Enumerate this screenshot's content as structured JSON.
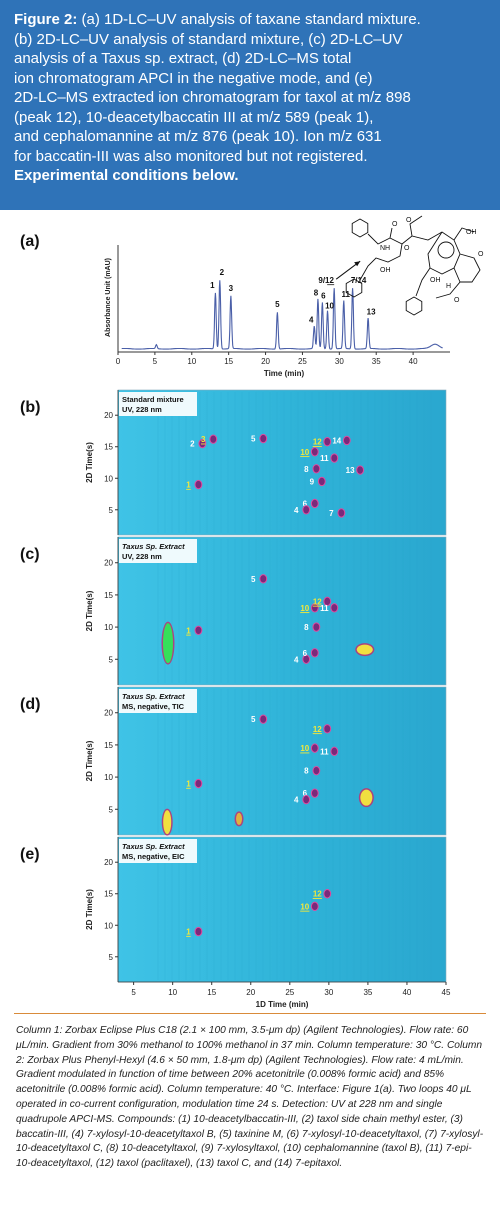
{
  "caption": {
    "figure_label": "Figure 2:",
    "lines": [
      " (a) 1D-LC–UV analysis of taxane standard mixture.",
      "(b) 2D-LC–UV analysis of standard mixture, (c) 2D-LC–UV",
      "analysis of a Taxus sp. extract, (d) 2D-LC–MS total",
      "ion chromatogram APCI in the negative mode, and (e)",
      "2D-LC–MS extracted ion chromatogram for taxol at m/z 898",
      "(peak 12), 10-deacetylbaccatin III at m/z 589 (peak 1),",
      "and cephalomannine at m/z 876 (peak 10). Ion m/z 631",
      "for baccatin-III was also monitored but not registered."
    ],
    "bold_line": "Experimental conditions below."
  },
  "conditions_text": "Column 1: Zorbax Eclipse Plus C18 (2.1 × 100 mm, 3.5-μm dp) (Agilent Technologies). Flow rate: 60 μL/min. Gradient from 30% methanol to 100% methanol in 37 min. Column temperature: 30 °C. Column 2: Zorbax Plus Phenyl-Hexyl (4.6 × 50 mm, 1.8-μm dp) (Agilent Technologies). Flow rate: 4 mL/min. Gradient modulated in function of time between 20% acetonitrile (0.008% formic acid) and 85% acetonitrile (0.008% formic acid). Column temperature: 40 °C. Interface: Figure 1(a). Two loops 40 μL operated in co-current configuration, modulation time 24 s. Detection: UV at 228 nm and single quadrupole APCI-MS. Compounds: (1) 10-deacetylbaccatin-III, (2) taxol side chain methyl ester, (3) baccatin-III, (4) 7-xylosyl-10-deacetyltaxol B, (5) taxinine M, (6) 7-xylosyl-10-deacetyltaxol, (7) 7-xylosyl-10-deacetyltaxol C, (8) 10-deacetyltaxol, (9) 7-xylosyltaxol, (10) cephalomannine (taxol B), (11) 7-epi-10-deacetyltaxol, (12) taxol (paclitaxel), (13) taxol C, and (14) 7-epitaxol.",
  "colors": {
    "caption_bg": "#2f73b8",
    "trace": "#4a5fa8",
    "heatmap_bg": "#2fb8d8",
    "peak_yellow": "#f2e83a",
    "rule": "#d98b3a"
  },
  "chart_data": [
    {
      "type": "line",
      "panel_label": "(a)",
      "xlabel": "Time (min)",
      "ylabel": "Absorbance Unit (mAU)",
      "xlim": [
        0,
        45
      ],
      "xticks": [
        0,
        5,
        10,
        15,
        20,
        25,
        30,
        35,
        40
      ],
      "peaks": [
        {
          "label": "1",
          "x": 13.2,
          "height": 0.7
        },
        {
          "label": "2",
          "x": 13.8,
          "height": 0.86
        },
        {
          "label": "3",
          "x": 15.3,
          "height": 0.66
        },
        {
          "label": "5",
          "x": 21.6,
          "height": 0.46
        },
        {
          "label": "4",
          "x": 26.6,
          "height": 0.28
        },
        {
          "label": "8",
          "x": 27.1,
          "height": 0.62
        },
        {
          "label": "6",
          "x": 27.7,
          "height": 0.58
        },
        {
          "label": "10",
          "x": 28.4,
          "height": 0.48
        },
        {
          "label": "9/12",
          "x": 29.3,
          "height": 0.76
        },
        {
          "label": "11",
          "x": 30.6,
          "height": 0.6
        },
        {
          "label": "7/14",
          "x": 31.8,
          "height": 0.76
        },
        {
          "label": "13",
          "x": 33.9,
          "height": 0.38
        }
      ]
    },
    {
      "type": "heatmap",
      "panel_label": "(b)",
      "inset_title": [
        "Standard mixture",
        "UV, 228 nm"
      ],
      "ylabel": "2D Time(s)",
      "yticks": [
        5,
        10,
        15,
        20
      ],
      "xlim": [
        3,
        45
      ],
      "ylim": [
        1,
        24
      ],
      "spots": [
        {
          "label": "1",
          "x": 13.3,
          "y": 9.0,
          "underline": true
        },
        {
          "label": "2",
          "x": 13.8,
          "y": 15.5
        },
        {
          "label": "3",
          "x": 15.2,
          "y": 16.2,
          "underline": true
        },
        {
          "label": "5",
          "x": 21.6,
          "y": 16.3
        },
        {
          "label": "10",
          "x": 28.2,
          "y": 14.2,
          "underline": true
        },
        {
          "label": "12",
          "x": 29.8,
          "y": 15.8,
          "underline": true
        },
        {
          "label": "8",
          "x": 28.4,
          "y": 11.5
        },
        {
          "label": "11",
          "x": 30.7,
          "y": 13.2
        },
        {
          "label": "14",
          "x": 32.3,
          "y": 16.0
        },
        {
          "label": "9",
          "x": 29.1,
          "y": 9.5
        },
        {
          "label": "13",
          "x": 34.0,
          "y": 11.3
        },
        {
          "label": "6",
          "x": 28.2,
          "y": 6.0
        },
        {
          "label": "4",
          "x": 27.1,
          "y": 5.0
        },
        {
          "label": "7",
          "x": 31.6,
          "y": 4.5
        }
      ]
    },
    {
      "type": "heatmap",
      "panel_label": "(c)",
      "inset_title": [
        "Taxus Sp. Extract",
        "UV, 228 nm"
      ],
      "ylabel": "2D Time(s)",
      "yticks": [
        5,
        10,
        15,
        20
      ],
      "xlim": [
        3,
        45
      ],
      "ylim": [
        1,
        24
      ],
      "spots": [
        {
          "label": "1",
          "x": 13.3,
          "y": 9.5,
          "underline": true
        },
        {
          "label": "5",
          "x": 21.6,
          "y": 17.5
        },
        {
          "label": "10",
          "x": 28.2,
          "y": 13.0,
          "underline": true
        },
        {
          "label": "12",
          "x": 29.8,
          "y": 14.0,
          "underline": true
        },
        {
          "label": "11",
          "x": 30.7,
          "y": 13.0
        },
        {
          "label": "8",
          "x": 28.4,
          "y": 10.0
        },
        {
          "label": "4",
          "x": 27.1,
          "y": 5.0
        },
        {
          "label": "6",
          "x": 28.2,
          "y": 6.0
        }
      ]
    },
    {
      "type": "heatmap",
      "panel_label": "(d)",
      "inset_title": [
        "Taxus Sp. Extract",
        "MS, negative, TIC"
      ],
      "ylabel": "2D Time(s)",
      "yticks": [
        5,
        10,
        15,
        20
      ],
      "xlim": [
        3,
        45
      ],
      "ylim": [
        1,
        24
      ],
      "spots": [
        {
          "label": "1",
          "x": 13.3,
          "y": 9.0,
          "underline": true
        },
        {
          "label": "5",
          "x": 21.6,
          "y": 19.0
        },
        {
          "label": "10",
          "x": 28.2,
          "y": 14.5,
          "underline": true
        },
        {
          "label": "12",
          "x": 29.8,
          "y": 17.5,
          "underline": true
        },
        {
          "label": "11",
          "x": 30.7,
          "y": 14.0
        },
        {
          "label": "8",
          "x": 28.4,
          "y": 11.0
        },
        {
          "label": "6",
          "x": 28.2,
          "y": 7.5
        },
        {
          "label": "4",
          "x": 27.1,
          "y": 6.5
        }
      ]
    },
    {
      "type": "heatmap",
      "panel_label": "(e)",
      "inset_title": [
        "Taxus Sp. Extract",
        "MS, negative, EIC"
      ],
      "ylabel": "2D Time(s)",
      "xlabel": "1D Time (min)",
      "yticks": [
        5,
        10,
        15,
        20
      ],
      "xticks": [
        5,
        10,
        15,
        20,
        25,
        30,
        35,
        40,
        45
      ],
      "xlim": [
        3,
        45
      ],
      "ylim": [
        1,
        24
      ],
      "spots": [
        {
          "label": "1",
          "x": 13.3,
          "y": 9.0,
          "underline": true
        },
        {
          "label": "10",
          "x": 28.2,
          "y": 13.0,
          "underline": true
        },
        {
          "label": "12",
          "x": 29.8,
          "y": 15.0,
          "underline": true
        }
      ]
    }
  ]
}
